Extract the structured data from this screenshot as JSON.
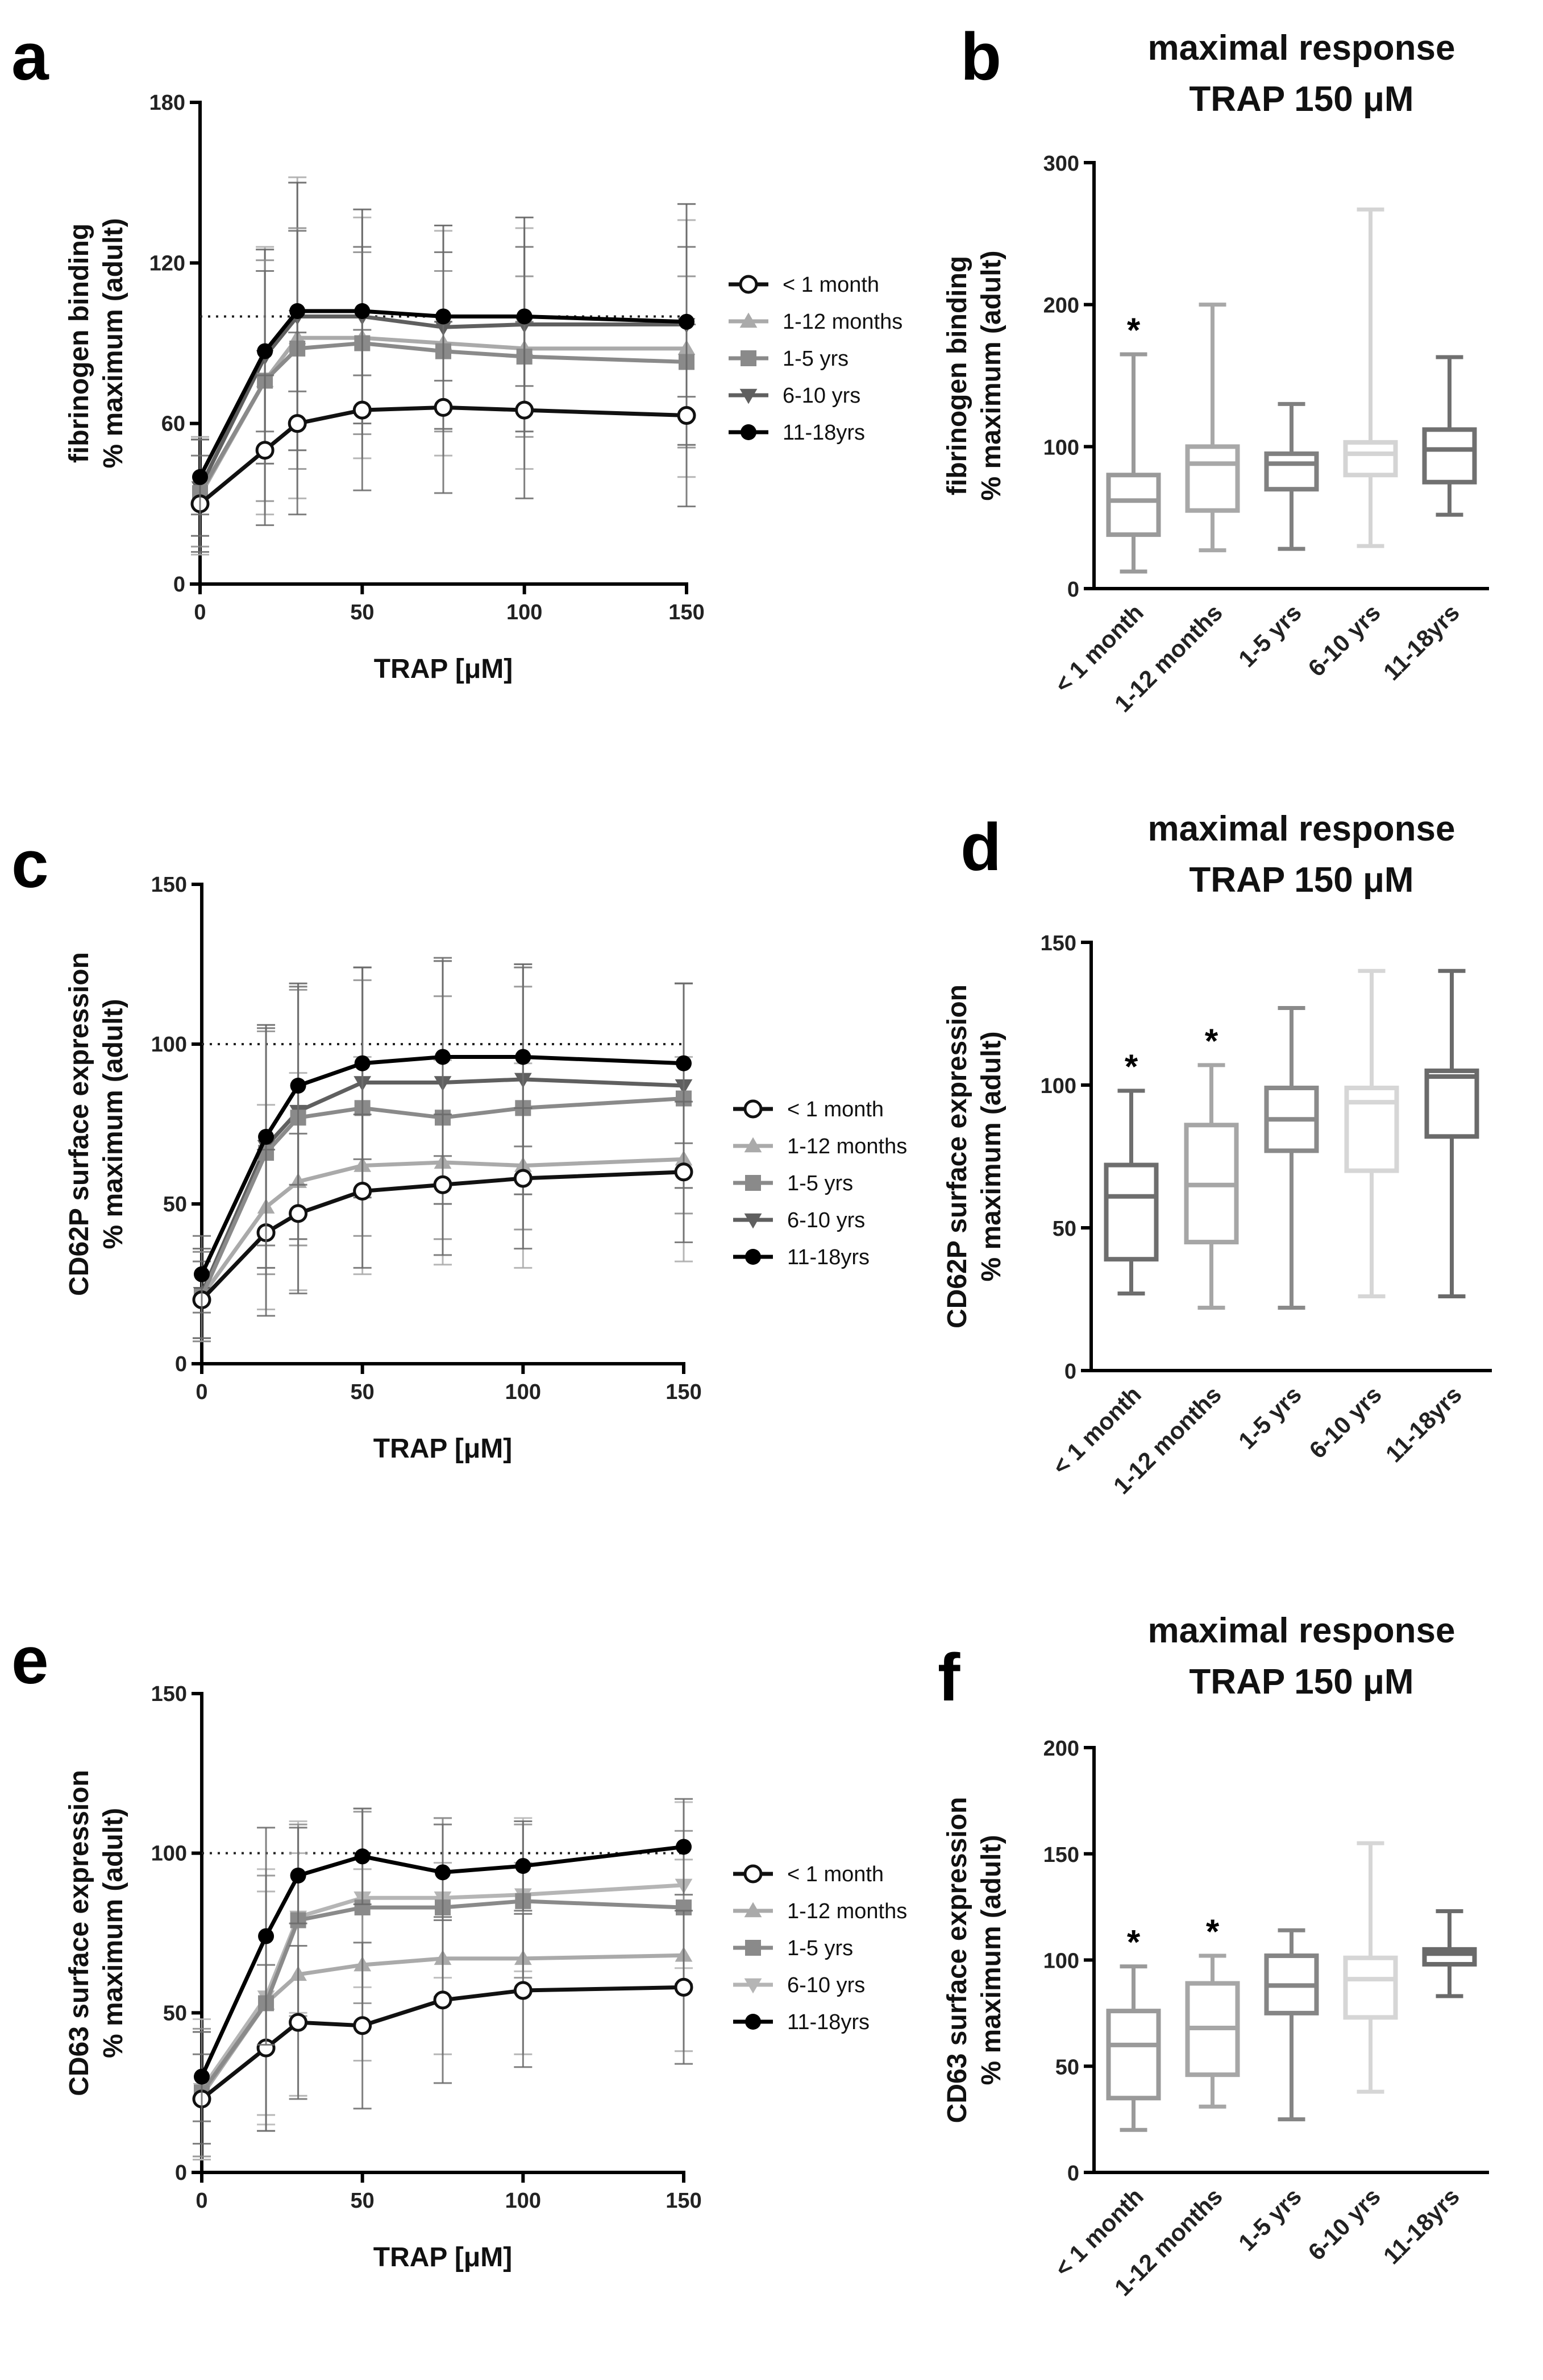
{
  "figure": {
    "legend_entries": [
      "< 1 month",
      "1-12 months",
      "1-5 yrs",
      "6-10 yrs",
      "11-18yrs"
    ]
  },
  "chart_data": [
    {
      "panel": "a",
      "type": "line",
      "title": "",
      "xlabel": "TRAP [μM]",
      "ylabel_line1": "fibrinogen binding",
      "ylabel_line2": "% maximum (adult)",
      "xlim": [
        0,
        150
      ],
      "ylim": [
        0,
        180
      ],
      "xticks": [
        0,
        50,
        100,
        150
      ],
      "yticks": [
        0,
        60,
        120,
        180
      ],
      "reference_line": 100,
      "x": [
        0,
        20,
        30,
        50,
        75,
        100,
        150
      ],
      "legend_position": "right",
      "series": [
        {
          "name": "< 1 month",
          "marker": "open-circle",
          "color": "#111111",
          "values": [
            30,
            50,
            60,
            65,
            66,
            65,
            63
          ],
          "error": [
            18,
            28,
            34,
            30,
            32,
            33,
            34
          ]
        },
        {
          "name": "1-12 months",
          "marker": "triangle-up",
          "color": "#aaaaaa",
          "values": [
            33,
            76,
            92,
            92,
            90,
            88,
            88
          ],
          "error": [
            22,
            50,
            60,
            45,
            42,
            45,
            48
          ]
        },
        {
          "name": "1-5 yrs",
          "marker": "square",
          "color": "#8a8a8a",
          "values": [
            34,
            76,
            88,
            90,
            87,
            85,
            83
          ],
          "error": [
            20,
            45,
            45,
            34,
            30,
            30,
            32
          ]
        },
        {
          "name": "6-10 yrs",
          "marker": "triangle-down",
          "color": "#5f5f5f",
          "values": [
            36,
            85,
            100,
            100,
            96,
            97,
            97
          ],
          "error": [
            18,
            40,
            50,
            40,
            38,
            40,
            45
          ]
        },
        {
          "name": "11-18yrs",
          "marker": "filled-circle",
          "color": "#000000",
          "values": [
            40,
            87,
            102,
            102,
            100,
            100,
            98
          ],
          "error": [
            14,
            30,
            30,
            24,
            24,
            26,
            28
          ]
        }
      ]
    },
    {
      "panel": "b",
      "type": "box",
      "title_line1": "maximal response",
      "title_line2": "TRAP 150 μM",
      "ylabel_line1": "fibrinogen binding",
      "ylabel_line2": "% maximum (adult)",
      "ylim": [
        0,
        300
      ],
      "yticks": [
        0,
        100,
        200,
        300
      ],
      "categories": [
        "< 1 month",
        "1-12 months",
        "1-5 yrs",
        "6-10 yrs",
        "11-18yrs"
      ],
      "significance": [
        "*",
        "",
        "",
        "",
        ""
      ],
      "box_colors": [
        "#9a9a9a",
        "#a8a8a8",
        "#808080",
        "#d4d4d4",
        "#707070"
      ],
      "boxes": [
        {
          "min": 12,
          "q1": 38,
          "median": 62,
          "q3": 80,
          "max": 165
        },
        {
          "min": 27,
          "q1": 55,
          "median": 88,
          "q3": 100,
          "max": 200
        },
        {
          "min": 28,
          "q1": 70,
          "median": 88,
          "q3": 95,
          "max": 130
        },
        {
          "min": 30,
          "q1": 80,
          "median": 95,
          "q3": 103,
          "max": 267
        },
        {
          "min": 52,
          "q1": 75,
          "median": 98,
          "q3": 112,
          "max": 163
        }
      ]
    },
    {
      "panel": "c",
      "type": "line",
      "title": "",
      "xlabel": "TRAP [μM]",
      "ylabel_line1": "CD62P surface expression",
      "ylabel_line2": "% maximum (adult)",
      "xlim": [
        0,
        150
      ],
      "ylim": [
        0,
        150
      ],
      "xticks": [
        0,
        50,
        100,
        150
      ],
      "yticks": [
        0,
        50,
        100,
        150
      ],
      "reference_line": 100,
      "x": [
        0,
        20,
        30,
        50,
        75,
        100,
        150
      ],
      "legend_position": "right",
      "series": [
        {
          "name": "< 1 month",
          "marker": "open-circle",
          "color": "#111111",
          "values": [
            20,
            41,
            47,
            54,
            56,
            58,
            60
          ],
          "error": [
            12,
            26,
            25,
            24,
            22,
            22,
            22
          ]
        },
        {
          "name": "1-12 months",
          "marker": "triangle-up",
          "color": "#aaaaaa",
          "values": [
            21,
            49,
            57,
            62,
            63,
            62,
            64
          ],
          "error": [
            14,
            32,
            34,
            34,
            32,
            32,
            32
          ]
        },
        {
          "name": "1-5 yrs",
          "marker": "square",
          "color": "#8a8a8a",
          "values": [
            21,
            66,
            77,
            80,
            77,
            80,
            83
          ],
          "error": [
            14,
            38,
            40,
            40,
            38,
            38,
            36
          ]
        },
        {
          "name": "6-10 yrs",
          "marker": "triangle-down",
          "color": "#5f5f5f",
          "values": [
            22,
            68,
            79,
            88,
            88,
            89,
            87
          ],
          "error": [
            14,
            38,
            40,
            36,
            38,
            36,
            32
          ]
        },
        {
          "name": "11-18yrs",
          "marker": "filled-circle",
          "color": "#000000",
          "values": [
            28,
            71,
            87,
            94,
            96,
            96,
            94
          ],
          "error": [
            12,
            34,
            31,
            30,
            31,
            28,
            25
          ]
        }
      ]
    },
    {
      "panel": "d",
      "type": "box",
      "title_line1": "maximal response",
      "title_line2": "TRAP 150 μM",
      "ylabel_line1": "CD62P surface expression",
      "ylabel_line2": "% maximum (adult)",
      "ylim": [
        0,
        150
      ],
      "yticks": [
        0,
        50,
        100,
        150
      ],
      "categories": [
        "< 1 month",
        "1-12 months",
        "1-5 yrs",
        "6-10 yrs",
        "11-18yrs"
      ],
      "significance": [
        "*",
        "*",
        "",
        "",
        ""
      ],
      "box_colors": [
        "#6e6e6e",
        "#a6a6a6",
        "#8a8a8a",
        "#d6d6d6",
        "#6a6a6a"
      ],
      "boxes": [
        {
          "min": 27,
          "q1": 39,
          "median": 61,
          "q3": 72,
          "max": 98
        },
        {
          "min": 22,
          "q1": 45,
          "median": 65,
          "q3": 86,
          "max": 107
        },
        {
          "min": 22,
          "q1": 77,
          "median": 88,
          "q3": 99,
          "max": 127
        },
        {
          "min": 26,
          "q1": 70,
          "median": 94,
          "q3": 99,
          "max": 140
        },
        {
          "min": 26,
          "q1": 82,
          "median": 103,
          "q3": 105,
          "max": 140
        }
      ]
    },
    {
      "panel": "e",
      "type": "line",
      "title": "",
      "xlabel": "TRAP [μM]",
      "ylabel_line1": "CD63 surface expression",
      "ylabel_line2": "% maximum (adult)",
      "xlim": [
        0,
        150
      ],
      "ylim": [
        0,
        150
      ],
      "xticks": [
        0,
        50,
        100,
        150
      ],
      "yticks": [
        0,
        50,
        100,
        150
      ],
      "reference_line": 100,
      "x": [
        0,
        20,
        30,
        50,
        75,
        100,
        150
      ],
      "legend_position": "right",
      "series": [
        {
          "name": "< 1 month",
          "marker": "open-circle",
          "color": "#111111",
          "values": [
            23,
            39,
            47,
            46,
            54,
            57,
            58
          ],
          "error": [
            14,
            26,
            24,
            26,
            26,
            24,
            24
          ]
        },
        {
          "name": "1-12 months",
          "marker": "triangle-up",
          "color": "#aaaaaa",
          "values": [
            24,
            53,
            62,
            65,
            67,
            67,
            68
          ],
          "error": [
            20,
            35,
            38,
            30,
            30,
            30,
            30
          ]
        },
        {
          "name": "1-5 yrs",
          "marker": "square",
          "color": "#8a8a8a",
          "values": [
            25,
            53,
            79,
            83,
            83,
            85,
            83
          ],
          "error": [
            20,
            40,
            30,
            30,
            28,
            24,
            24
          ]
        },
        {
          "name": "6-10 yrs",
          "marker": "triangle-down",
          "color": "#b5b5b5",
          "values": [
            26,
            55,
            80,
            86,
            86,
            87,
            90
          ],
          "error": [
            22,
            40,
            30,
            28,
            25,
            24,
            26
          ]
        },
        {
          "name": "11-18yrs",
          "marker": "filled-circle",
          "color": "#000000",
          "values": [
            30,
            74,
            93,
            99,
            94,
            96,
            102
          ],
          "error": [
            14,
            34,
            15,
            15,
            15,
            14,
            15
          ]
        }
      ]
    },
    {
      "panel": "f",
      "type": "box",
      "title_line1": "maximal response",
      "title_line2": "TRAP 150 μM",
      "ylabel_line1": "CD63 surface expression",
      "ylabel_line2": "% maximum (adult)",
      "ylim": [
        0,
        200
      ],
      "yticks": [
        0,
        50,
        100,
        150,
        200
      ],
      "categories": [
        "< 1 month",
        "1-12 months",
        "1-5 yrs",
        "6-10 yrs",
        "11-18yrs"
      ],
      "significance": [
        "*",
        "*",
        "",
        "",
        ""
      ],
      "box_colors": [
        "#9a9a9a",
        "#a6a6a6",
        "#858585",
        "#d6d6d6",
        "#6a6a6a"
      ],
      "boxes": [
        {
          "min": 20,
          "q1": 35,
          "median": 60,
          "q3": 76,
          "max": 97
        },
        {
          "min": 31,
          "q1": 46,
          "median": 68,
          "q3": 89,
          "max": 102
        },
        {
          "min": 25,
          "q1": 75,
          "median": 88,
          "q3": 102,
          "max": 114
        },
        {
          "min": 38,
          "q1": 73,
          "median": 91,
          "q3": 101,
          "max": 155
        },
        {
          "min": 83,
          "q1": 98,
          "median": 103,
          "q3": 105,
          "max": 123
        }
      ]
    }
  ]
}
